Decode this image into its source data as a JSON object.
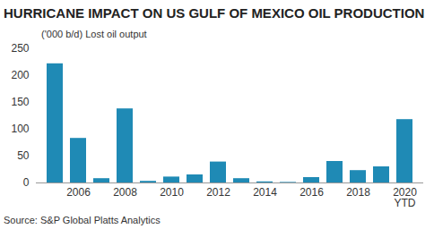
{
  "chart_data": {
    "type": "bar",
    "title": "HURRICANE IMPACT ON US GULF OF MEXICO OIL PRODUCTION",
    "y_label": "('000 b/d) Lost oil output",
    "source": "Source: S&P Global Platts Analytics",
    "categories": [
      null,
      "2006",
      null,
      "2008",
      null,
      "2010",
      null,
      "2012",
      null,
      "2014",
      null,
      "2016",
      null,
      "2018",
      null,
      "2020\nYTD"
    ],
    "values": [
      222,
      83,
      8,
      138,
      3,
      11,
      15,
      39,
      8,
      2,
      1,
      10,
      40,
      23,
      30,
      118
    ],
    "color": "#1f8ab5",
    "ylim": [
      0,
      250
    ],
    "yticks": [
      0,
      50,
      100,
      150,
      200,
      250
    ],
    "grid": false
  }
}
